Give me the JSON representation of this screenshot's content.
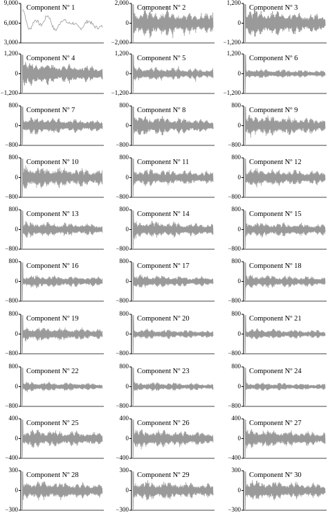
{
  "chart_data": [
    {
      "type": "line",
      "title": "Component Nº 1",
      "yticks": [
        "9,000",
        "6,000",
        "3,000"
      ],
      "ylim": [
        0,
        9000
      ],
      "style": "trend",
      "center": 5000,
      "amp": 3200
    },
    {
      "type": "line",
      "title": "Component Nº 2",
      "yticks": [
        "2,000",
        "0",
        "−2,000"
      ],
      "ylim": [
        -2000,
        2000
      ],
      "style": "spiky",
      "amp": 1600
    },
    {
      "type": "area",
      "title": "Component Nº 3",
      "yticks": [
        "1,200",
        "0",
        "−1,200"
      ],
      "ylim": [
        -1200,
        1200
      ],
      "style": "dense",
      "amp": 1000
    },
    {
      "type": "area",
      "title": "Component Nº 4",
      "yticks": [
        "1,200",
        "0",
        "−1,200"
      ],
      "ylim": [
        -1200,
        1200
      ],
      "style": "dense",
      "amp": 850
    },
    {
      "type": "line",
      "title": "Component Nº 5",
      "yticks": [
        "1,200",
        "0",
        "−1,200"
      ],
      "ylim": [
        -1200,
        1200
      ],
      "style": "spiky",
      "amp": 500
    },
    {
      "type": "line",
      "title": "Component Nº 6",
      "yticks": [
        "1,200",
        "0",
        "−1,200"
      ],
      "ylim": [
        -1200,
        1200
      ],
      "style": "burst",
      "amp": 350
    },
    {
      "type": "area",
      "title": "Component Nº 7",
      "yticks": [
        "800",
        "0",
        "−800"
      ],
      "ylim": [
        -800,
        800
      ],
      "style": "dense",
      "amp": 420
    },
    {
      "type": "area",
      "title": "Component Nº 8",
      "yticks": [
        "800",
        "0",
        "−800"
      ],
      "ylim": [
        -800,
        800
      ],
      "style": "dense",
      "amp": 480
    },
    {
      "type": "line",
      "title": "Component Nº 9",
      "yticks": [
        "800",
        "0",
        "−800"
      ],
      "ylim": [
        -800,
        800
      ],
      "style": "burst",
      "amp": 520
    },
    {
      "type": "line",
      "title": "Component Nº 10",
      "yticks": [
        "800",
        "0",
        "−800"
      ],
      "ylim": [
        -800,
        800
      ],
      "style": "burst",
      "amp": 560
    },
    {
      "type": "line",
      "title": "Component Nº 11",
      "yticks": [
        "800",
        "0",
        "−800"
      ],
      "ylim": [
        -800,
        800
      ],
      "style": "burst",
      "amp": 420
    },
    {
      "type": "line",
      "title": "Component Nº 12",
      "yticks": [
        "800",
        "0",
        "−800"
      ],
      "ylim": [
        -800,
        800
      ],
      "style": "burst",
      "amp": 450
    },
    {
      "type": "line",
      "title": "Component Nº 13",
      "yticks": [
        "800",
        "0",
        "−800"
      ],
      "ylim": [
        -800,
        800
      ],
      "style": "burst",
      "amp": 380
    },
    {
      "type": "line",
      "title": "Component Nº 14",
      "yticks": [
        "800",
        "0",
        "−800"
      ],
      "ylim": [
        -800,
        800
      ],
      "style": "burst",
      "amp": 420
    },
    {
      "type": "line",
      "title": "Component Nº 15",
      "yticks": [
        "800",
        "0",
        "−800"
      ],
      "ylim": [
        -800,
        800
      ],
      "style": "burst",
      "amp": 380
    },
    {
      "type": "line",
      "title": "Component Nº 16",
      "yticks": [
        "800",
        "0",
        "−800"
      ],
      "ylim": [
        -800,
        800
      ],
      "style": "burst",
      "amp": 320
    },
    {
      "type": "line",
      "title": "Component Nº 17",
      "yticks": [
        "800",
        "0",
        "−800"
      ],
      "ylim": [
        -800,
        800
      ],
      "style": "burst",
      "amp": 320
    },
    {
      "type": "line",
      "title": "Component Nº 18",
      "yticks": [
        "800",
        "0",
        "−800"
      ],
      "ylim": [
        -800,
        800
      ],
      "style": "burst",
      "amp": 330
    },
    {
      "type": "line",
      "title": "Component Nº 19",
      "yticks": [
        "800",
        "0",
        "−800"
      ],
      "ylim": [
        -800,
        800
      ],
      "style": "burst",
      "amp": 360
    },
    {
      "type": "line",
      "title": "Component Nº 20",
      "yticks": [
        "800",
        "0",
        "−800"
      ],
      "ylim": [
        -800,
        800
      ],
      "style": "burst",
      "amp": 250
    },
    {
      "type": "line",
      "title": "Component Nº 21",
      "yticks": [
        "800",
        "0",
        "−800"
      ],
      "ylim": [
        -800,
        800
      ],
      "style": "burst",
      "amp": 260
    },
    {
      "type": "line",
      "title": "Component Nº 22",
      "yticks": [
        "800",
        "0",
        "−800"
      ],
      "ylim": [
        -800,
        800
      ],
      "style": "burst",
      "amp": 240
    },
    {
      "type": "line",
      "title": "Component Nº 23",
      "yticks": [
        "800",
        "0",
        "−800"
      ],
      "ylim": [
        -800,
        800
      ],
      "style": "burst",
      "amp": 220
    },
    {
      "type": "line",
      "title": "Component Nº 24",
      "yticks": [
        "800",
        "0",
        "−800"
      ],
      "ylim": [
        -800,
        800
      ],
      "style": "burst",
      "amp": 200
    },
    {
      "type": "line",
      "title": "Component Nº 25",
      "yticks": [
        "400",
        "0",
        "−400"
      ],
      "ylim": [
        -400,
        400
      ],
      "style": "burst",
      "amp": 220
    },
    {
      "type": "line",
      "title": "Component Nº 26",
      "yticks": [
        "400",
        "0",
        "−400"
      ],
      "ylim": [
        -400,
        400
      ],
      "style": "burst",
      "amp": 230
    },
    {
      "type": "line",
      "title": "Component Nº 27",
      "yticks": [
        "400",
        "0",
        "−400"
      ],
      "ylim": [
        -400,
        400
      ],
      "style": "burst",
      "amp": 230
    },
    {
      "type": "line",
      "title": "Component Nº 28",
      "yticks": [
        "300",
        "0",
        "−300"
      ],
      "ylim": [
        -300,
        300
      ],
      "style": "burst",
      "amp": 180
    },
    {
      "type": "line",
      "title": "Component Nº 29",
      "yticks": [
        "300",
        "0",
        "−300"
      ],
      "ylim": [
        -300,
        300
      ],
      "style": "burst",
      "amp": 180
    },
    {
      "type": "line",
      "title": "Component Nº 30",
      "yticks": [
        "300",
        "0",
        "−300"
      ],
      "ylim": [
        -300,
        300
      ],
      "style": "burst",
      "amp": 180
    }
  ],
  "colors": {
    "line": "#9a9a9a",
    "axis": "#000000"
  }
}
